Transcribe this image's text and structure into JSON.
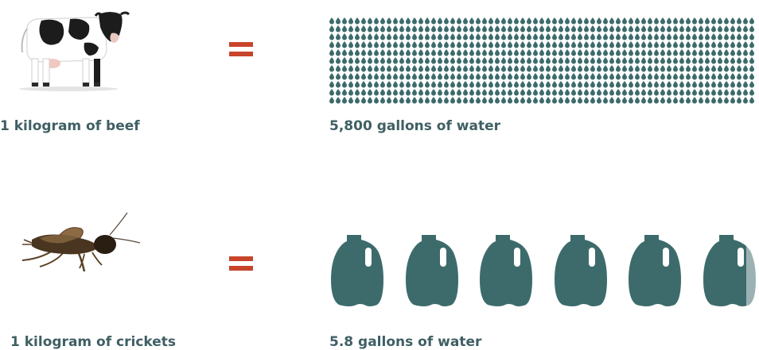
{
  "rows": [
    {
      "item_label": "1 kilogram of beef",
      "water_label": "5,800 gallons of water",
      "illustration": "cow-icon"
    },
    {
      "item_label": "1 kilogram of crickets",
      "water_label": "5.8 gallons of water",
      "illustration": "cricket-icon",
      "jugs": 5.8
    }
  ],
  "colors": {
    "text": "#3f5f63",
    "equals": "#c8442b",
    "water": "#3d6b6b",
    "water_light": "#9cb2b2"
  }
}
